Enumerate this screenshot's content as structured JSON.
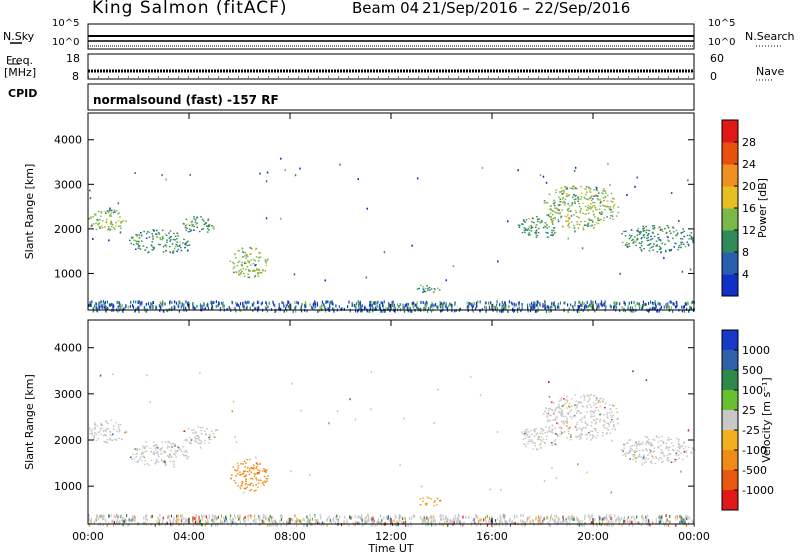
{
  "header": {
    "station": "King Salmon (fitACF)",
    "beam": "Beam 04",
    "date_range": "21/Sep/2016 – 22/Sep/2016"
  },
  "noise_panel": {
    "left_label": "N.Sky",
    "right_label": "N.Search",
    "tick_top": "10^5",
    "tick_bottom": "10^0"
  },
  "freq_panel": {
    "left_label_1": "Freq.",
    "left_label_2": "[MHz]",
    "right_label": "Nave",
    "left_ticks": [
      "18",
      "8"
    ],
    "right_ticks": [
      "60",
      "0"
    ]
  },
  "cpid": {
    "label": "CPID",
    "value": "normalsound (fast) -157 RF"
  },
  "chart_data": [
    {
      "type": "heatmap",
      "title": "",
      "xlabel": "Time UT",
      "ylabel": "Slant Range [km]",
      "xlim": [
        0,
        24
      ],
      "ylim": [
        180,
        4600
      ],
      "x_ticks": [
        "00:00",
        "04:00",
        "08:00",
        "12:00",
        "16:00",
        "20:00",
        "00:00"
      ],
      "y_ticks": [
        "1000",
        "2000",
        "3000",
        "4000"
      ],
      "colorbar": {
        "label": "Power [dB]",
        "ticks": [
          "4",
          "8",
          "12",
          "16",
          "20",
          "24",
          "28"
        ],
        "colors": [
          "#1030c8",
          "#2a5fb0",
          "#2f8a58",
          "#7ab84a",
          "#e6c020",
          "#f09020",
          "#e85010",
          "#e01818"
        ]
      },
      "features": [
        {
          "t0": 0.0,
          "t1": 1.5,
          "r0": 1950,
          "r1": 2450,
          "value": 16
        },
        {
          "t0": 1.6,
          "t1": 4.0,
          "r0": 1450,
          "r1": 2000,
          "value": 12
        },
        {
          "t0": 3.7,
          "t1": 5.0,
          "r0": 1900,
          "r1": 2300,
          "value": 10
        },
        {
          "t0": 5.6,
          "t1": 7.1,
          "r0": 900,
          "r1": 1600,
          "value": 14
        },
        {
          "t0": 13.0,
          "t1": 14.0,
          "r0": 580,
          "r1": 780,
          "value": 12
        },
        {
          "t0": 17.0,
          "t1": 18.6,
          "r0": 1800,
          "r1": 2300,
          "value": 10
        },
        {
          "t0": 18.0,
          "t1": 21.0,
          "r0": 2000,
          "r1": 3000,
          "value": 16
        },
        {
          "t0": 21.0,
          "t1": 24.0,
          "r0": 1500,
          "r1": 2100,
          "value": 12
        }
      ]
    },
    {
      "type": "heatmap",
      "title": "",
      "xlabel": "Time UT",
      "ylabel": "Slant Range [km]",
      "xlim": [
        0,
        24
      ],
      "ylim": [
        180,
        4600
      ],
      "x_ticks": [
        "00:00",
        "04:00",
        "08:00",
        "12:00",
        "16:00",
        "20:00",
        "00:00"
      ],
      "y_ticks": [
        "1000",
        "2000",
        "3000",
        "4000"
      ],
      "colorbar": {
        "label": "Velocity [m s⁻¹]",
        "ticks": [
          "1000",
          "500",
          "100",
          "25",
          "-25",
          "-100",
          "-500",
          "-1000"
        ],
        "colors": [
          "#1838c8",
          "#3060a8",
          "#2e8a4a",
          "#68c030",
          "#c8c8c8",
          "#f0b020",
          "#f08a18",
          "#e85810",
          "#e01818"
        ]
      },
      "features": [
        {
          "t0": 0.0,
          "t1": 1.5,
          "r0": 1950,
          "r1": 2450,
          "value": 0
        },
        {
          "t0": 1.6,
          "t1": 4.0,
          "r0": 1450,
          "r1": 2000,
          "value": 0
        },
        {
          "t0": 3.7,
          "t1": 5.0,
          "r0": 1900,
          "r1": 2300,
          "value": 0
        },
        {
          "t0": 5.6,
          "t1": 7.1,
          "r0": 900,
          "r1": 1600,
          "value": -300
        },
        {
          "t0": 13.0,
          "t1": 14.0,
          "r0": 580,
          "r1": 780,
          "value": -200
        },
        {
          "t0": 17.0,
          "t1": 18.6,
          "r0": 1800,
          "r1": 2300,
          "value": 0
        },
        {
          "t0": 18.0,
          "t1": 21.0,
          "r0": 2000,
          "r1": 3000,
          "value": 0
        },
        {
          "t0": 21.0,
          "t1": 24.0,
          "r0": 1500,
          "r1": 2100,
          "value": 0
        }
      ]
    }
  ]
}
